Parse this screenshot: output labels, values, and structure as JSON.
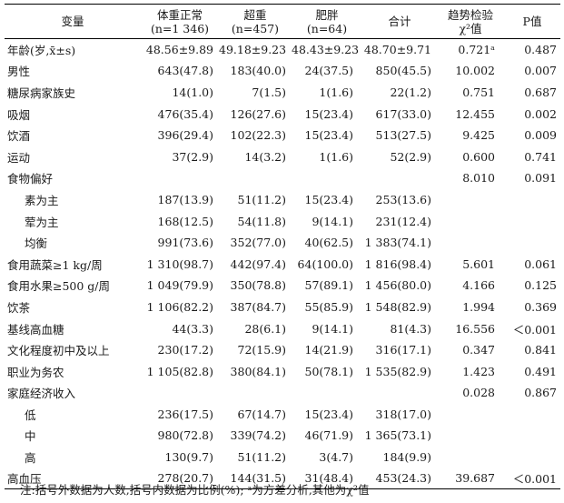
{
  "headers": [
    {
      "line1": "变量",
      "line2": ""
    },
    {
      "line1": "体重正常",
      "line2": "(n=1 346)"
    },
    {
      "line1": "超重",
      "line2": "(n=457)"
    },
    {
      "line1": "肥胖",
      "line2": "(n=64)"
    },
    {
      "line1": "合计",
      "line2": ""
    },
    {
      "line1": "趋势检验",
      "line2": "χ²值"
    },
    {
      "line1": "P值",
      "line2": ""
    }
  ],
  "rows": [
    {
      "label": "年龄(岁,x̄±s)",
      "indent": false,
      "normal": "48.56±9.89",
      "overweight": "49.18±9.23",
      "obese": "48.43±9.23",
      "total": "48.70±9.71",
      "chi2": "0.721ᵃ",
      "p": "0.487"
    },
    {
      "label": "男性",
      "indent": false,
      "normal": "643(47.8)",
      "overweight": "183(40.0)",
      "obese": "24(37.5)",
      "total": "850(45.5)",
      "chi2": "10.002",
      "p": "0.007"
    },
    {
      "label": "糖尿病家族史",
      "indent": false,
      "normal": "14(1.0)",
      "overweight": "7(1.5)",
      "obese": "1(1.6)",
      "total": "22(1.2)",
      "chi2": "0.751",
      "p": "0.687"
    },
    {
      "label": "吸烟",
      "indent": false,
      "normal": "476(35.4)",
      "overweight": "126(27.6)",
      "obese": "15(23.4)",
      "total": "617(33.0)",
      "chi2": "12.455",
      "p": "0.002"
    },
    {
      "label": "饮酒",
      "indent": false,
      "normal": "396(29.4)",
      "overweight": "102(22.3)",
      "obese": "15(23.4)",
      "total": "513(27.5)",
      "chi2": "9.425",
      "p": "0.009"
    },
    {
      "label": "运动",
      "indent": false,
      "normal": "37(2.9)",
      "overweight": "14(3.2)",
      "obese": "1(1.6)",
      "total": "52(2.9)",
      "chi2": "0.600",
      "p": "0.741"
    },
    {
      "label": "食物偏好",
      "indent": false,
      "normal": "",
      "overweight": "",
      "obese": "",
      "total": "",
      "chi2": "8.010",
      "p": "0.091"
    },
    {
      "label": "素为主",
      "indent": true,
      "normal": "187(13.9)",
      "overweight": "51(11.2)",
      "obese": "15(23.4)",
      "total": "253(13.6)",
      "chi2": "",
      "p": ""
    },
    {
      "label": "荤为主",
      "indent": true,
      "normal": "168(12.5)",
      "overweight": "54(11.8)",
      "obese": "9(14.1)",
      "total": "231(12.4)",
      "chi2": "",
      "p": ""
    },
    {
      "label": "均衡",
      "indent": true,
      "normal": "991(73.6)",
      "overweight": "352(77.0)",
      "obese": "40(62.5)",
      "total": "1 383(74.1)",
      "chi2": "",
      "p": ""
    },
    {
      "label": "食用蔬菜≥1 kg/周",
      "indent": false,
      "normal": "1 310(98.7)",
      "overweight": "442(97.4)",
      "obese": "64(100.0)",
      "total": "1 816(98.4)",
      "chi2": "5.601",
      "p": "0.061"
    },
    {
      "label": "食用水果≥500 g/周",
      "indent": false,
      "normal": "1 049(79.9)",
      "overweight": "350(78.8)",
      "obese": "57(89.1)",
      "total": "1 456(80.0)",
      "chi2": "4.166",
      "p": "0.125"
    },
    {
      "label": "饮茶",
      "indent": false,
      "normal": "1 106(82.2)",
      "overweight": "387(84.7)",
      "obese": "55(85.9)",
      "total": "1 548(82.9)",
      "chi2": "1.994",
      "p": "0.369"
    },
    {
      "label": "基线高血糖",
      "indent": false,
      "normal": "44(3.3)",
      "overweight": "28(6.1)",
      "obese": "9(14.1)",
      "total": "81(4.3)",
      "chi2": "16.556",
      "p": "＜0.001"
    },
    {
      "label": "文化程度初中及以上",
      "indent": false,
      "normal": "230(17.2)",
      "overweight": "72(15.9)",
      "obese": "14(21.9)",
      "total": "316(17.1)",
      "chi2": "0.347",
      "p": "0.841"
    },
    {
      "label": "职业为务农",
      "indent": false,
      "normal": "1 105(82.8)",
      "overweight": "380(84.1)",
      "obese": "50(78.1)",
      "total": "1 535(82.9)",
      "chi2": "1.423",
      "p": "0.491"
    },
    {
      "label": "家庭经济收入",
      "indent": false,
      "normal": "",
      "overweight": "",
      "obese": "",
      "total": "",
      "chi2": "0.028",
      "p": "0.867"
    },
    {
      "label": "低",
      "indent": true,
      "normal": "236(17.5)",
      "overweight": "67(14.7)",
      "obese": "15(23.4)",
      "total": "318(17.0)",
      "chi2": "",
      "p": ""
    },
    {
      "label": "中",
      "indent": true,
      "normal": "980(72.8)",
      "overweight": "339(74.2)",
      "obese": "46(71.9)",
      "total": "1 365(73.1)",
      "chi2": "",
      "p": ""
    },
    {
      "label": "高",
      "indent": true,
      "normal": "130(9.7)",
      "overweight": "51(11.2)",
      "obese": "3(4.7)",
      "total": "184(9.9)",
      "chi2": "",
      "p": ""
    },
    {
      "label": "高血压",
      "indent": false,
      "normal": "278(20.7)",
      "overweight": "144(31.5)",
      "obese": "31(48.4)",
      "total": "453(24.3)",
      "chi2": "39.687",
      "p": "＜0.001"
    }
  ],
  "note": "注:括号外数据为人数,括号内数据为比例(%); ᵃ为方差分析,其他为χ²值"
}
